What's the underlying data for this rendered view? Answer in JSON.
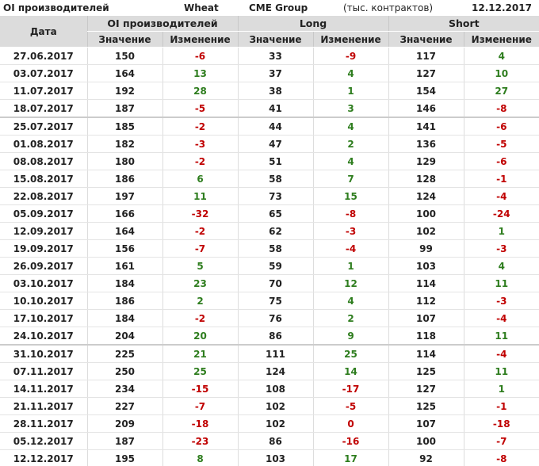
{
  "header": {
    "title": "OI производителей",
    "commodity": "Wheat",
    "exchange": "CME Group",
    "units": "(тыс. контрактов)",
    "date": "12.12.2017"
  },
  "columns": {
    "date": "Дата",
    "groups": [
      "OI производителей",
      "Long",
      "Short"
    ],
    "value": "Значение",
    "change": "Изменение"
  },
  "colors": {
    "positive": "#2e7d1e",
    "negative": "#c00000",
    "header_bg": "#dcdcdc"
  },
  "rows": [
    [
      "27.06.2017",
      "150",
      "-6",
      "33",
      "-9",
      "117",
      "4"
    ],
    [
      "03.07.2017",
      "164",
      "13",
      "37",
      "4",
      "127",
      "10"
    ],
    [
      "11.07.2017",
      "192",
      "28",
      "38",
      "1",
      "154",
      "27"
    ],
    [
      "18.07.2017",
      "187",
      "-5",
      "41",
      "3",
      "146",
      "-8"
    ],
    [
      "25.07.2017",
      "185",
      "-2",
      "44",
      "4",
      "141",
      "-6"
    ],
    [
      "01.08.2017",
      "182",
      "-3",
      "47",
      "2",
      "136",
      "-5"
    ],
    [
      "08.08.2017",
      "180",
      "-2",
      "51",
      "4",
      "129",
      "-6"
    ],
    [
      "15.08.2017",
      "186",
      "6",
      "58",
      "7",
      "128",
      "-1"
    ],
    [
      "22.08.2017",
      "197",
      "11",
      "73",
      "15",
      "124",
      "-4"
    ],
    [
      "05.09.2017",
      "166",
      "-32",
      "65",
      "-8",
      "100",
      "-24"
    ],
    [
      "12.09.2017",
      "164",
      "-2",
      "62",
      "-3",
      "102",
      "1"
    ],
    [
      "19.09.2017",
      "156",
      "-7",
      "58",
      "-4",
      "99",
      "-3"
    ],
    [
      "26.09.2017",
      "161",
      "5",
      "59",
      "1",
      "103",
      "4"
    ],
    [
      "03.10.2017",
      "184",
      "23",
      "70",
      "12",
      "114",
      "11"
    ],
    [
      "10.10.2017",
      "186",
      "2",
      "75",
      "4",
      "112",
      "-3"
    ],
    [
      "17.10.2017",
      "184",
      "-2",
      "76",
      "2",
      "107",
      "-4"
    ],
    [
      "24.10.2017",
      "204",
      "20",
      "86",
      "9",
      "118",
      "11"
    ],
    [
      "31.10.2017",
      "225",
      "21",
      "111",
      "25",
      "114",
      "-4"
    ],
    [
      "07.11.2017",
      "250",
      "25",
      "124",
      "14",
      "125",
      "11"
    ],
    [
      "14.11.2017",
      "234",
      "-15",
      "108",
      "-17",
      "127",
      "1"
    ],
    [
      "21.11.2017",
      "227",
      "-7",
      "102",
      "-5",
      "125",
      "-1"
    ],
    [
      "28.11.2017",
      "209",
      "-18",
      "102",
      "0",
      "107",
      "-18"
    ],
    [
      "05.12.2017",
      "187",
      "-23",
      "86",
      "-16",
      "100",
      "-7"
    ],
    [
      "12.12.2017",
      "195",
      "8",
      "103",
      "17",
      "92",
      "-8"
    ]
  ]
}
